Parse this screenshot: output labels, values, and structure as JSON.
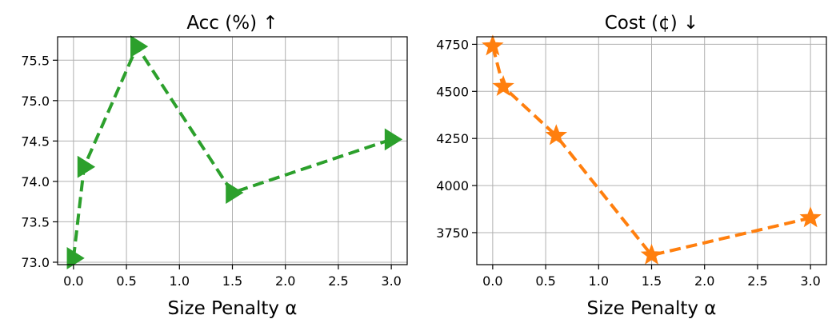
{
  "chart_data": [
    {
      "type": "line",
      "title": "Acc (%) ↑",
      "xlabel": "Size Penalty α",
      "ylabel": "",
      "xlim": [
        -0.15,
        3.15
      ],
      "ylim": [
        72.97,
        75.79
      ],
      "xticks": [
        0.0,
        0.5,
        1.0,
        1.5,
        2.0,
        2.5,
        3.0
      ],
      "xtick_labels": [
        "0.0",
        "0.5",
        "1.0",
        "1.5",
        "2.0",
        "2.5",
        "3.0"
      ],
      "yticks": [
        73.0,
        73.5,
        74.0,
        74.5,
        75.0,
        75.5
      ],
      "ytick_labels": [
        "73.0",
        "73.5",
        "74.0",
        "74.5",
        "75.0",
        "75.5"
      ],
      "grid": true,
      "series": [
        {
          "x": [
            0.0,
            0.1,
            0.6,
            1.5,
            3.0
          ],
          "y": [
            73.05,
            74.18,
            75.67,
            73.86,
            74.52
          ],
          "color": "#2ca02c",
          "line_style": "dashed",
          "marker": "triangle-right"
        }
      ]
    },
    {
      "type": "line",
      "title": "Cost (¢) ↓",
      "xlabel": "Size Penalty α",
      "ylabel": "",
      "xlim": [
        -0.15,
        3.15
      ],
      "ylim": [
        3580,
        4790
      ],
      "xticks": [
        0.0,
        0.5,
        1.0,
        1.5,
        2.0,
        2.5,
        3.0
      ],
      "xtick_labels": [
        "0.0",
        "0.5",
        "1.0",
        "1.5",
        "2.0",
        "2.5",
        "3.0"
      ],
      "yticks": [
        3750,
        4000,
        4250,
        4500,
        4750
      ],
      "ytick_labels": [
        "3750",
        "4000",
        "4250",
        "4500",
        "4750"
      ],
      "grid": true,
      "series": [
        {
          "x": [
            0.0,
            0.1,
            0.6,
            1.5,
            3.0
          ],
          "y": [
            4740,
            4525,
            4265,
            3630,
            3828
          ],
          "color": "#ff7f0e",
          "line_style": "dashed",
          "marker": "star"
        }
      ]
    }
  ]
}
